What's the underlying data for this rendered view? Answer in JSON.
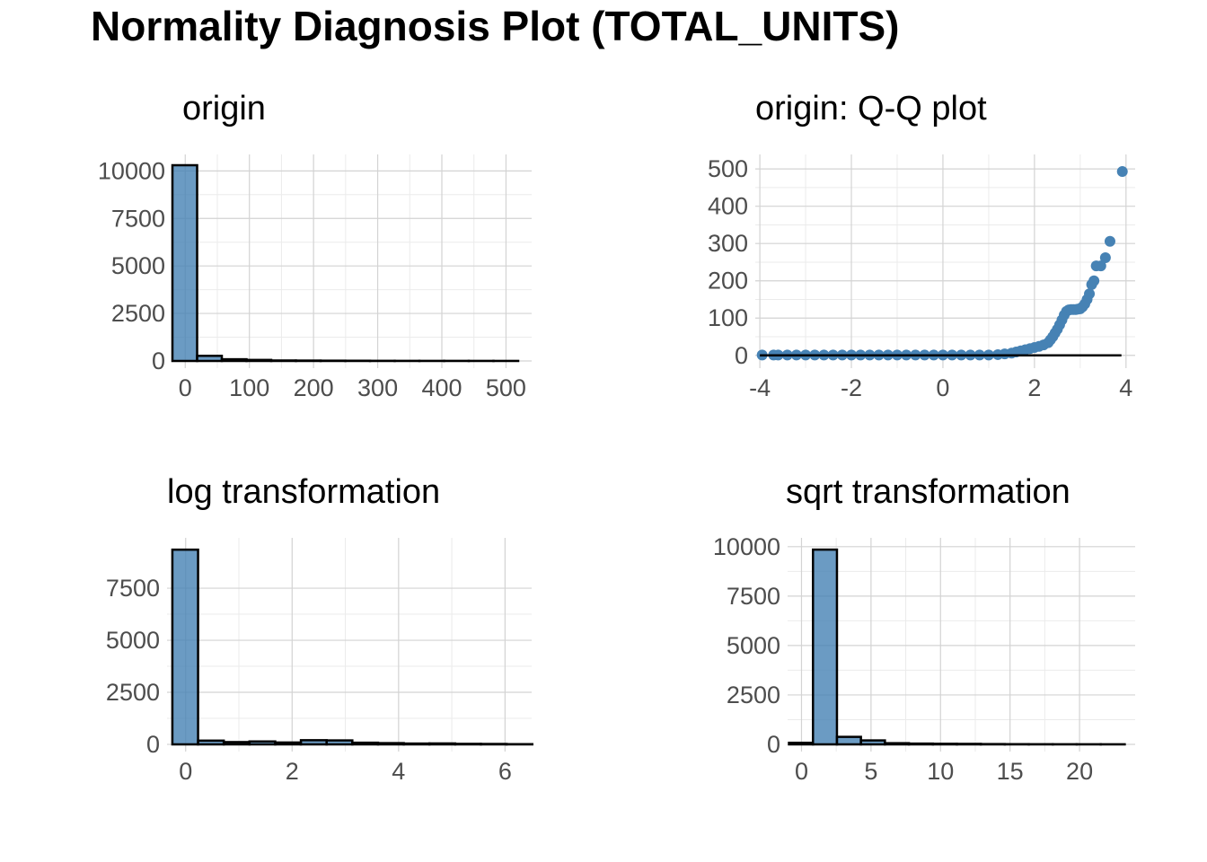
{
  "title": "Normality Diagnosis Plot (TOTAL_UNITS)",
  "colors": {
    "fill": "#4682B4",
    "outline": "#000000",
    "grid_major": "#d3d3d3",
    "grid_minor": "#ebebeb",
    "tick_text": "#4d4d4d"
  },
  "chart_data": [
    {
      "type": "bar",
      "title": "origin",
      "xlabel": "",
      "ylabel": "",
      "xlim": [
        -20,
        540
      ],
      "ylim": [
        0,
        10300
      ],
      "xticks": [
        0,
        100,
        200,
        300,
        400,
        500
      ],
      "yticks": [
        0,
        2500,
        5000,
        7500,
        10000
      ],
      "bin_start": -20,
      "bin_width": 38.5,
      "values": [
        10300,
        270,
        90,
        55,
        25,
        20,
        15,
        12,
        8,
        6,
        5,
        5,
        4,
        3
      ]
    },
    {
      "type": "scatter",
      "title": "origin: Q-Q plot",
      "xlabel": "",
      "ylabel": "",
      "xlim": [
        -4.1,
        4.2
      ],
      "ylim": [
        -15,
        510
      ],
      "xticks": [
        -4,
        -2,
        0,
        2,
        4
      ],
      "yticks": [
        0,
        100,
        200,
        300,
        400,
        500
      ],
      "reference_line": {
        "x": [
          -4,
          3.9
        ],
        "y": [
          0,
          0
        ]
      },
      "points": [
        [
          -3.95,
          1
        ],
        [
          -3.7,
          1
        ],
        [
          -3.6,
          1
        ],
        [
          -3.4,
          1
        ],
        [
          -3.2,
          1
        ],
        [
          -3.0,
          1
        ],
        [
          -2.8,
          1
        ],
        [
          -2.6,
          1
        ],
        [
          -2.4,
          1
        ],
        [
          -2.2,
          1
        ],
        [
          -2.0,
          1
        ],
        [
          -1.8,
          1
        ],
        [
          -1.6,
          1
        ],
        [
          -1.4,
          1
        ],
        [
          -1.2,
          1
        ],
        [
          -1.0,
          1
        ],
        [
          -0.8,
          1
        ],
        [
          -0.6,
          1
        ],
        [
          -0.4,
          1
        ],
        [
          -0.2,
          1
        ],
        [
          0.0,
          1
        ],
        [
          0.2,
          1
        ],
        [
          0.4,
          1
        ],
        [
          0.6,
          1
        ],
        [
          0.8,
          1
        ],
        [
          1.0,
          1
        ],
        [
          1.2,
          2
        ],
        [
          1.35,
          4
        ],
        [
          1.5,
          6
        ],
        [
          1.6,
          9
        ],
        [
          1.7,
          12
        ],
        [
          1.8,
          15
        ],
        [
          1.9,
          18
        ],
        [
          2.0,
          21
        ],
        [
          2.1,
          24
        ],
        [
          2.2,
          28
        ],
        [
          2.3,
          34
        ],
        [
          2.35,
          42
        ],
        [
          2.4,
          50
        ],
        [
          2.45,
          60
        ],
        [
          2.5,
          70
        ],
        [
          2.55,
          82
        ],
        [
          2.6,
          95
        ],
        [
          2.65,
          108
        ],
        [
          2.7,
          118
        ],
        [
          2.75,
          122
        ],
        [
          2.8,
          123
        ],
        [
          2.85,
          123
        ],
        [
          2.9,
          123
        ],
        [
          2.95,
          124
        ],
        [
          3.0,
          125
        ],
        [
          3.05,
          130
        ],
        [
          3.1,
          138
        ],
        [
          3.15,
          150
        ],
        [
          3.2,
          165
        ],
        [
          3.25,
          190
        ],
        [
          3.3,
          200
        ],
        [
          3.35,
          240
        ],
        [
          3.45,
          240
        ],
        [
          3.55,
          262
        ],
        [
          3.65,
          306
        ],
        [
          3.92,
          493
        ]
      ]
    },
    {
      "type": "bar",
      "title": "log transformation",
      "xlabel": "",
      "ylabel": "",
      "xlim": [
        -0.35,
        6.5
      ],
      "ylim": [
        0,
        9400
      ],
      "xticks": [
        0,
        2,
        4,
        6
      ],
      "yticks": [
        0,
        2500,
        5000,
        7500
      ],
      "bin_start": -0.25,
      "bin_width": 0.483,
      "values": [
        9350,
        180,
        110,
        140,
        90,
        200,
        190,
        80,
        60,
        40,
        45,
        25,
        20,
        10
      ]
    },
    {
      "type": "bar",
      "title": "sqrt transformation",
      "xlabel": "",
      "ylabel": "",
      "xlim": [
        -1,
        24
      ],
      "ylim": [
        0,
        9900
      ],
      "xticks": [
        0,
        5,
        10,
        15,
        20
      ],
      "yticks": [
        0,
        2500,
        5000,
        7500,
        10000
      ],
      "bin_start": -0.9,
      "bin_width": 1.725,
      "values": [
        80,
        9850,
        380,
        200,
        60,
        40,
        30,
        25,
        15,
        10,
        8,
        6,
        5,
        4
      ]
    }
  ]
}
